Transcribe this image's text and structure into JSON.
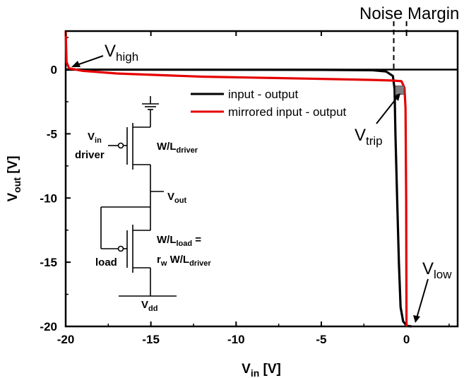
{
  "chart_data": {
    "type": "line",
    "xlabel": {
      "main": "V",
      "sub": "in",
      "unit": " [V]"
    },
    "ylabel": {
      "main": "V",
      "sub": "out",
      "unit": " [V]"
    },
    "xlim": [
      -20,
      3
    ],
    "ylim": [
      -20,
      3
    ],
    "x_ticks": [
      -20,
      -15,
      -10,
      -5,
      0
    ],
    "y_ticks": [
      0,
      -5,
      -10,
      -15,
      -20
    ],
    "grid": false,
    "legend_position": "upper-center",
    "series": [
      {
        "name": "input - output",
        "color": "#000000",
        "points": [
          [
            -20,
            0
          ],
          [
            -5,
            -0.02
          ],
          [
            -2,
            -0.05
          ],
          [
            -1.2,
            -0.15
          ],
          [
            -0.8,
            -0.5
          ],
          [
            -0.7,
            -1.5
          ],
          [
            -0.65,
            -5
          ],
          [
            -0.55,
            -10
          ],
          [
            -0.45,
            -15
          ],
          [
            -0.35,
            -18.5
          ],
          [
            -0.2,
            -19.6
          ],
          [
            0,
            -19.95
          ],
          [
            0.3,
            -20
          ]
        ]
      },
      {
        "name": "mirrored input - output",
        "color": "#e60000",
        "points": [
          [
            -20,
            3
          ],
          [
            -19.95,
            0.6
          ],
          [
            -19.8,
            0.1
          ],
          [
            -19,
            -0.1
          ],
          [
            -17,
            -0.3
          ],
          [
            -12,
            -0.55
          ],
          [
            -6,
            -0.7
          ],
          [
            -2,
            -0.8
          ],
          [
            -0.8,
            -0.85
          ],
          [
            -0.3,
            -0.9
          ],
          [
            -0.12,
            -1.4
          ],
          [
            -0.06,
            -3
          ],
          [
            -0.02,
            -10
          ],
          [
            0,
            -20
          ]
        ]
      }
    ],
    "noise_margin": {
      "label": "Noise Margin",
      "x_left": -0.75,
      "x_right": 0
    },
    "trip_point": {
      "x": -0.4,
      "y": -1.6,
      "color": "#808080"
    },
    "annotations": [
      {
        "main": "V",
        "sub": "high",
        "at": [
          -19.7,
          0.1
        ]
      },
      {
        "main": "V",
        "sub": "trip",
        "at": [
          -0.6,
          -2.0
        ]
      },
      {
        "main": "V",
        "sub": "low",
        "at": [
          0.15,
          -19.8
        ]
      }
    ],
    "circuit": {
      "vin": {
        "main": "V",
        "sub": "in"
      },
      "driver_label": "driver",
      "wl_driver": {
        "main": "W/L",
        "sub": "driver"
      },
      "vout": {
        "main": "V",
        "sub": "out"
      },
      "load_label": "load",
      "wl_load": {
        "main": "W/L",
        "sub": "load",
        "suffix": " ="
      },
      "rw": {
        "main": "r",
        "sub": "w",
        "mid": " W/L",
        "sub2": "driver"
      },
      "vdd": {
        "main": "V",
        "sub": "dd"
      }
    }
  }
}
